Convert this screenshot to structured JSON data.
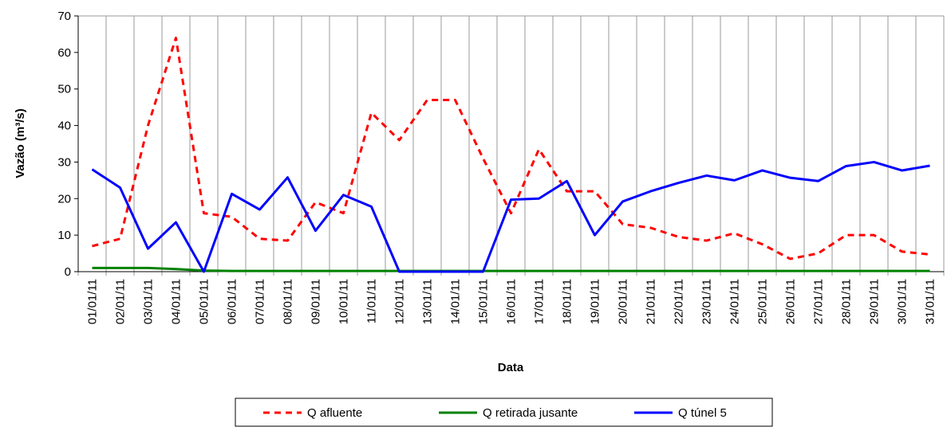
{
  "chart_data": {
    "type": "line",
    "x_label": "Data",
    "y_label": "Vazão (m³/s)",
    "categories": [
      "01/01/11",
      "02/01/11",
      "03/01/11",
      "04/01/11",
      "05/01/11",
      "06/01/11",
      "07/01/11",
      "08/01/11",
      "09/01/11",
      "10/01/11",
      "11/01/11",
      "12/01/11",
      "13/01/11",
      "14/01/11",
      "15/01/11",
      "16/01/11",
      "17/01/11",
      "18/01/11",
      "19/01/11",
      "20/01/11",
      "21/01/11",
      "22/01/11",
      "23/01/11",
      "24/01/11",
      "25/01/11",
      "26/01/11",
      "27/01/11",
      "28/01/11",
      "29/01/11",
      "30/01/11",
      "31/01/11"
    ],
    "series": [
      {
        "name": "Q afluente",
        "color": "#ff0000",
        "dashed": true,
        "values": [
          7,
          9,
          40,
          64,
          16,
          15,
          9,
          8.5,
          19,
          16,
          43.5,
          36,
          47,
          47,
          31,
          16,
          33.5,
          22,
          22,
          13,
          12,
          9.5,
          8.5,
          10.5,
          7.5,
          3.5,
          5,
          10,
          10,
          5.5,
          4.7
        ]
      },
      {
        "name": "Q retirada jusante",
        "color": "#008000",
        "dashed": false,
        "values": [
          1,
          1,
          1,
          0.7,
          0.3,
          0.2,
          0.2,
          0.2,
          0.2,
          0.2,
          0.2,
          0.2,
          0.2,
          0.2,
          0.2,
          0.2,
          0.2,
          0.2,
          0.2,
          0.2,
          0.2,
          0.2,
          0.2,
          0.2,
          0.2,
          0.2,
          0.2,
          0.2,
          0.2,
          0.2,
          0.2
        ]
      },
      {
        "name": "Q túnel 5",
        "color": "#0000ff",
        "dashed": false,
        "values": [
          28,
          23,
          6.3,
          13.5,
          0,
          21.3,
          17,
          25.8,
          11.2,
          21,
          17.8,
          0,
          0,
          0,
          0,
          19.7,
          20,
          24.8,
          10,
          19.2,
          22,
          24.3,
          26.3,
          25,
          27.7,
          25.7,
          24.8,
          28.9,
          30,
          27.7,
          29
        ]
      }
    ],
    "ylim": [
      0,
      70
    ],
    "yticks": [
      0,
      10,
      20,
      30,
      40,
      50,
      60,
      70
    ],
    "grid": true
  }
}
